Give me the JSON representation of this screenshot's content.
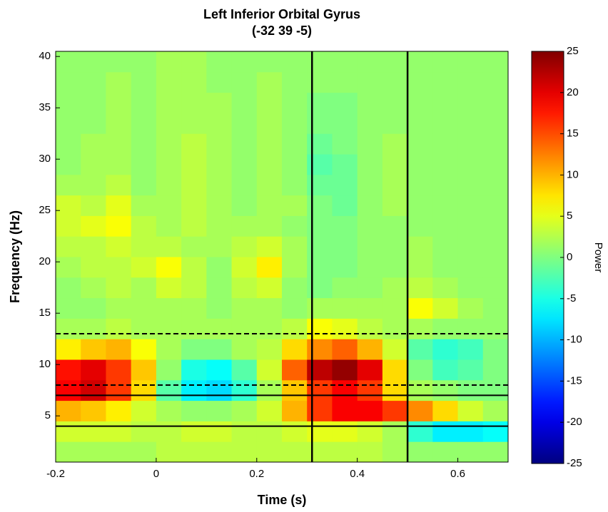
{
  "chart_data": {
    "type": "heatmap",
    "title": [
      "Left Inferior Orbital Gyrus",
      "(-32 39 -5)"
    ],
    "x_label": "Time (s)",
    "y_label": "Frequency (Hz)",
    "colorbar_label": "Power",
    "colormap": "jet",
    "xlim": [
      -0.2,
      0.7
    ],
    "xticks": [
      -0.2,
      0,
      0.2,
      0.4,
      0.6
    ],
    "ylim": [
      0.5,
      40.5
    ],
    "yticks": [
      5,
      10,
      15,
      20,
      25,
      30,
      35,
      40
    ],
    "clim": [
      -25,
      25
    ],
    "cticks": [
      -25,
      -20,
      -15,
      -10,
      -5,
      0,
      5,
      10,
      15,
      20,
      25
    ],
    "x": [
      -0.175,
      -0.125,
      -0.075,
      -0.025,
      0.025,
      0.075,
      0.125,
      0.175,
      0.225,
      0.275,
      0.325,
      0.375,
      0.425,
      0.475,
      0.525,
      0.575,
      0.625,
      0.675
    ],
    "y": [
      1.5,
      3.5,
      5.5,
      7.5,
      9.5,
      11.5,
      13.5,
      15.5,
      17.5,
      19.5,
      21.5,
      23.5,
      25.5,
      27.5,
      29.5,
      31.5,
      33.5,
      35.5,
      37.5,
      39.5
    ],
    "z": [
      [
        2,
        2,
        2,
        2,
        3,
        3,
        3,
        3,
        3,
        3,
        3,
        3,
        3,
        2,
        1,
        1,
        1,
        1
      ],
      [
        4,
        4,
        4,
        3,
        3,
        4,
        4,
        3,
        3,
        4,
        5,
        5,
        4,
        2,
        -4,
        -7,
        -7,
        -6
      ],
      [
        10,
        9,
        7,
        4,
        2,
        1,
        1,
        2,
        4,
        10,
        16,
        19,
        19,
        16,
        12,
        8,
        4,
        2
      ],
      [
        19,
        21,
        16,
        8,
        -2,
        -7,
        -8,
        -4,
        2,
        9,
        16,
        19,
        16,
        8,
        2,
        1,
        0,
        0
      ],
      [
        18,
        20,
        16,
        9,
        1,
        -5,
        -6,
        -2,
        4,
        14,
        22,
        24,
        20,
        8,
        0,
        -3,
        -2,
        0
      ],
      [
        7,
        9,
        10,
        6,
        2,
        0,
        0,
        2,
        3,
        8,
        12,
        14,
        10,
        4,
        -2,
        -4,
        -3,
        0
      ],
      [
        2,
        2,
        3,
        2,
        2,
        2,
        2,
        2,
        2,
        3,
        6,
        5,
        3,
        2,
        2,
        1,
        1,
        1
      ],
      [
        1,
        1,
        2,
        2,
        2,
        2,
        1,
        2,
        2,
        1,
        2,
        2,
        2,
        2,
        6,
        4,
        2,
        1
      ],
      [
        1,
        2,
        3,
        2,
        4,
        3,
        1,
        3,
        4,
        1,
        0,
        1,
        1,
        2,
        3,
        2,
        1,
        1
      ],
      [
        2,
        3,
        3,
        4,
        6,
        3,
        1,
        4,
        7,
        2,
        0,
        0,
        1,
        1,
        2,
        1,
        1,
        1
      ],
      [
        3,
        3,
        4,
        3,
        3,
        2,
        2,
        3,
        4,
        2,
        0,
        0,
        1,
        1,
        2,
        1,
        1,
        1
      ],
      [
        4,
        5,
        6,
        3,
        2,
        3,
        2,
        2,
        2,
        1,
        0,
        0,
        1,
        1,
        1,
        1,
        1,
        1
      ],
      [
        4,
        3,
        5,
        2,
        2,
        3,
        2,
        1,
        2,
        2,
        0,
        -1,
        1,
        2,
        1,
        1,
        1,
        1
      ],
      [
        2,
        2,
        3,
        1,
        2,
        3,
        2,
        1,
        2,
        1,
        -1,
        -1,
        1,
        2,
        1,
        1,
        1,
        1
      ],
      [
        1,
        2,
        2,
        1,
        2,
        3,
        2,
        1,
        2,
        1,
        -2,
        -1,
        1,
        2,
        1,
        1,
        1,
        1
      ],
      [
        1,
        2,
        2,
        1,
        2,
        3,
        2,
        1,
        2,
        1,
        -1,
        0,
        1,
        2,
        1,
        1,
        1,
        1
      ],
      [
        1,
        1,
        2,
        1,
        2,
        2,
        2,
        1,
        2,
        1,
        0,
        0,
        1,
        1,
        1,
        1,
        1,
        1
      ],
      [
        1,
        1,
        2,
        1,
        2,
        2,
        2,
        1,
        2,
        1,
        0,
        0,
        1,
        1,
        1,
        1,
        1,
        1
      ],
      [
        1,
        1,
        2,
        1,
        2,
        2,
        1,
        1,
        2,
        1,
        1,
        1,
        1,
        1,
        1,
        1,
        1,
        1
      ],
      [
        1,
        1,
        1,
        1,
        2,
        2,
        1,
        1,
        1,
        1,
        1,
        1,
        1,
        1,
        1,
        1,
        1,
        1
      ]
    ],
    "hlines": [
      {
        "value": 13,
        "style": "dashed"
      },
      {
        "value": 8,
        "style": "dashed"
      },
      {
        "value": 7,
        "style": "solid"
      },
      {
        "value": 4,
        "style": "solid"
      }
    ],
    "vlines": [
      {
        "value": 0.31,
        "style": "solid"
      },
      {
        "value": 0.5,
        "style": "solid"
      }
    ]
  }
}
